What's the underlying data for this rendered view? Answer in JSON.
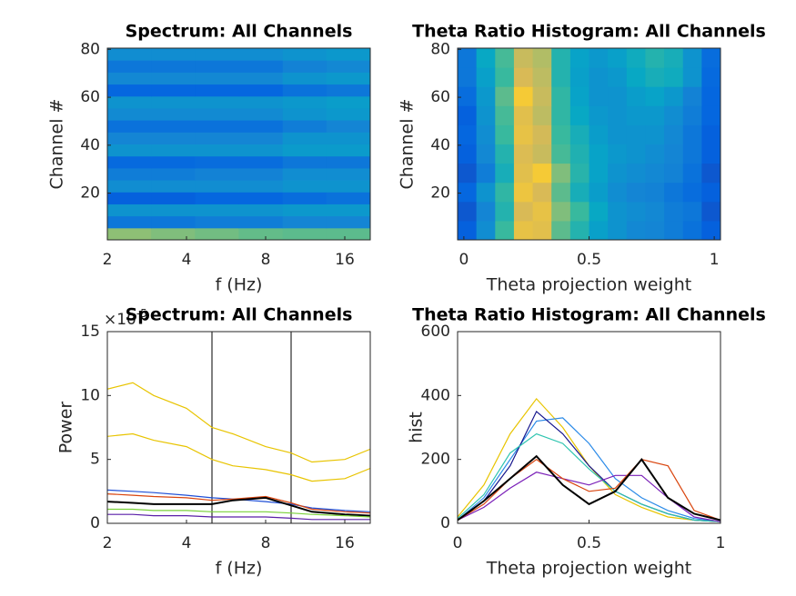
{
  "chart_data": [
    {
      "type": "heatmap",
      "title": "Spectrum: All Channels",
      "xlabel": "f (Hz)",
      "ylabel": "Channel #",
      "xlog": true,
      "xlim": [
        2,
        20
      ],
      "xticks": [
        2,
        4,
        8,
        16
      ],
      "ylim": [
        0.5,
        80.5
      ],
      "yticks": [
        20,
        40,
        60,
        80
      ],
      "clim": [
        0,
        1
      ],
      "colormap": [
        "#352a87",
        "#0363e1",
        "#1485d4",
        "#06a7c6",
        "#38b99e",
        "#92bf73",
        "#d9ba56",
        "#fcce2e",
        "#f9fb0e"
      ],
      "z": [
        [
          0.62,
          0.6,
          0.58,
          0.56,
          0.55,
          0.55
        ],
        [
          0.2,
          0.2,
          0.22,
          0.22,
          0.25,
          0.25
        ],
        [
          0.3,
          0.3,
          0.3,
          0.3,
          0.32,
          0.32
        ],
        [
          0.12,
          0.12,
          0.14,
          0.14,
          0.16,
          0.18
        ],
        [
          0.28,
          0.28,
          0.28,
          0.28,
          0.3,
          0.3
        ],
        [
          0.22,
          0.22,
          0.24,
          0.24,
          0.28,
          0.28
        ],
        [
          0.15,
          0.15,
          0.16,
          0.16,
          0.2,
          0.2
        ],
        [
          0.3,
          0.3,
          0.3,
          0.3,
          0.33,
          0.33
        ],
        [
          0.25,
          0.25,
          0.25,
          0.25,
          0.3,
          0.3
        ],
        [
          0.18,
          0.18,
          0.18,
          0.18,
          0.22,
          0.25
        ],
        [
          0.27,
          0.27,
          0.27,
          0.27,
          0.3,
          0.32
        ],
        [
          0.3,
          0.3,
          0.3,
          0.3,
          0.32,
          0.34
        ],
        [
          0.14,
          0.14,
          0.14,
          0.14,
          0.18,
          0.2
        ],
        [
          0.26,
          0.26,
          0.26,
          0.26,
          0.3,
          0.32
        ],
        [
          0.2,
          0.2,
          0.2,
          0.2,
          0.24,
          0.26
        ],
        [
          0.28,
          0.28,
          0.28,
          0.28,
          0.3,
          0.32
        ]
      ]
    },
    {
      "type": "heatmap",
      "title": "Theta Ratio Histogram: All Channels",
      "xlabel": "Theta projection weight",
      "ylabel": "Channel #",
      "xlim": [
        -0.025,
        1.025
      ],
      "xticks": [
        0,
        0.5,
        1
      ],
      "ylim": [
        0.5,
        80.5
      ],
      "yticks": [
        20,
        40,
        60,
        80
      ],
      "clim": [
        0,
        1
      ],
      "colormap": [
        "#352a87",
        "#0363e1",
        "#1485d4",
        "#06a7c6",
        "#38b99e",
        "#92bf73",
        "#d9ba56",
        "#fcce2e",
        "#f9fb0e"
      ],
      "z": [
        [
          0.12,
          0.28,
          0.5,
          0.8,
          0.78,
          0.55,
          0.45,
          0.35,
          0.3,
          0.26,
          0.25,
          0.22,
          0.18,
          0.12
        ],
        [
          0.1,
          0.25,
          0.45,
          0.75,
          0.8,
          0.6,
          0.5,
          0.38,
          0.3,
          0.28,
          0.26,
          0.22,
          0.2,
          0.1
        ],
        [
          0.14,
          0.3,
          0.48,
          0.82,
          0.75,
          0.55,
          0.42,
          0.34,
          0.28,
          0.25,
          0.24,
          0.2,
          0.16,
          0.12
        ],
        [
          0.1,
          0.22,
          0.42,
          0.78,
          0.85,
          0.6,
          0.46,
          0.36,
          0.3,
          0.28,
          0.26,
          0.24,
          0.18,
          0.1
        ],
        [
          0.12,
          0.26,
          0.45,
          0.76,
          0.72,
          0.52,
          0.44,
          0.36,
          0.32,
          0.3,
          0.28,
          0.25,
          0.2,
          0.12
        ],
        [
          0.14,
          0.28,
          0.5,
          0.8,
          0.74,
          0.5,
          0.42,
          0.34,
          0.3,
          0.3,
          0.3,
          0.26,
          0.2,
          0.12
        ],
        [
          0.12,
          0.3,
          0.52,
          0.78,
          0.7,
          0.48,
          0.38,
          0.32,
          0.3,
          0.32,
          0.32,
          0.28,
          0.22,
          0.14
        ],
        [
          0.16,
          0.32,
          0.55,
          0.85,
          0.72,
          0.48,
          0.36,
          0.3,
          0.3,
          0.34,
          0.36,
          0.32,
          0.24,
          0.14
        ],
        [
          0.2,
          0.35,
          0.5,
          0.75,
          0.7,
          0.45,
          0.35,
          0.3,
          0.32,
          0.38,
          0.42,
          0.4,
          0.3,
          0.15
        ],
        [
          0.2,
          0.38,
          0.52,
          0.72,
          0.68,
          0.45,
          0.36,
          0.32,
          0.35,
          0.4,
          0.45,
          0.42,
          0.3,
          0.16
        ]
      ]
    },
    {
      "type": "line",
      "title": "Spectrum: All Channels",
      "xlabel": "f (Hz)",
      "ylabel": "Power",
      "y_exponent_base": "×10",
      "y_exponent": "-5",
      "xlog": true,
      "xlim": [
        2,
        20
      ],
      "xticks": [
        2,
        4,
        8,
        16
      ],
      "ylim": [
        0,
        15
      ],
      "yticks": [
        0,
        5,
        10,
        15
      ],
      "vlines": [
        5,
        10
      ],
      "vline_color": "#000000",
      "x": [
        2,
        2.5,
        3,
        4,
        5,
        6,
        8,
        10,
        12,
        16,
        20
      ],
      "series": [
        {
          "color": "#e8c400",
          "values": [
            10.5,
            11,
            10,
            9,
            7.5,
            7,
            6,
            5.5,
            4.8,
            5.0,
            5.8
          ]
        },
        {
          "color": "#e8c400",
          "values": [
            6.8,
            7,
            6.5,
            6,
            5,
            4.5,
            4.2,
            3.8,
            3.3,
            3.5,
            4.3
          ]
        },
        {
          "color": "#1f4fd6",
          "values": [
            2.6,
            2.5,
            2.4,
            2.2,
            2,
            1.9,
            1.7,
            1.5,
            1.2,
            1,
            0.9
          ]
        },
        {
          "color": "#d9450e",
          "values": [
            2.3,
            2.2,
            2.1,
            2,
            1.8,
            1.9,
            2.1,
            1.6,
            1.1,
            0.9,
            0.8
          ]
        },
        {
          "color": "#000000",
          "values": [
            1.7,
            1.6,
            1.5,
            1.5,
            1.5,
            1.8,
            2,
            1.4,
            0.9,
            0.7,
            0.6
          ]
        },
        {
          "color": "#7ad13a",
          "values": [
            1.1,
            1.1,
            1,
            1,
            0.9,
            0.9,
            0.9,
            0.8,
            0.7,
            0.6,
            0.5
          ]
        },
        {
          "color": "#5a1fa8",
          "values": [
            0.7,
            0.7,
            0.6,
            0.6,
            0.5,
            0.5,
            0.5,
            0.4,
            0.3,
            0.3,
            0.3
          ]
        }
      ]
    },
    {
      "type": "line",
      "title": "Theta Ratio Histogram: All Channels",
      "xlabel": "Theta projection weight",
      "ylabel": "hist",
      "xlim": [
        0,
        1
      ],
      "xticks": [
        0,
        0.5,
        1
      ],
      "ylim": [
        0,
        600
      ],
      "yticks": [
        0,
        200,
        400,
        600
      ],
      "x": [
        0,
        0.1,
        0.2,
        0.3,
        0.4,
        0.5,
        0.6,
        0.7,
        0.8,
        0.9,
        1
      ],
      "series": [
        {
          "color": "#e8c400",
          "values": [
            20,
            120,
            280,
            390,
            300,
            180,
            90,
            50,
            20,
            10,
            5
          ]
        },
        {
          "color": "#2a8ae8",
          "values": [
            10,
            80,
            200,
            320,
            330,
            250,
            140,
            80,
            40,
            15,
            5
          ]
        },
        {
          "color": "#14148c",
          "values": [
            10,
            70,
            180,
            350,
            280,
            180,
            100,
            60,
            30,
            10,
            5
          ]
        },
        {
          "color": "#2ec4b0",
          "values": [
            15,
            90,
            220,
            280,
            250,
            170,
            100,
            60,
            30,
            10,
            5
          ]
        },
        {
          "color": "#7a1fb8",
          "values": [
            10,
            50,
            110,
            160,
            140,
            120,
            150,
            150,
            80,
            20,
            5
          ]
        },
        {
          "color": "#d9450e",
          "values": [
            10,
            60,
            140,
            200,
            140,
            100,
            110,
            200,
            180,
            40,
            10
          ]
        },
        {
          "color": "#000000",
          "values": [
            10,
            70,
            140,
            210,
            120,
            60,
            100,
            200,
            80,
            30,
            10
          ]
        }
      ]
    }
  ]
}
